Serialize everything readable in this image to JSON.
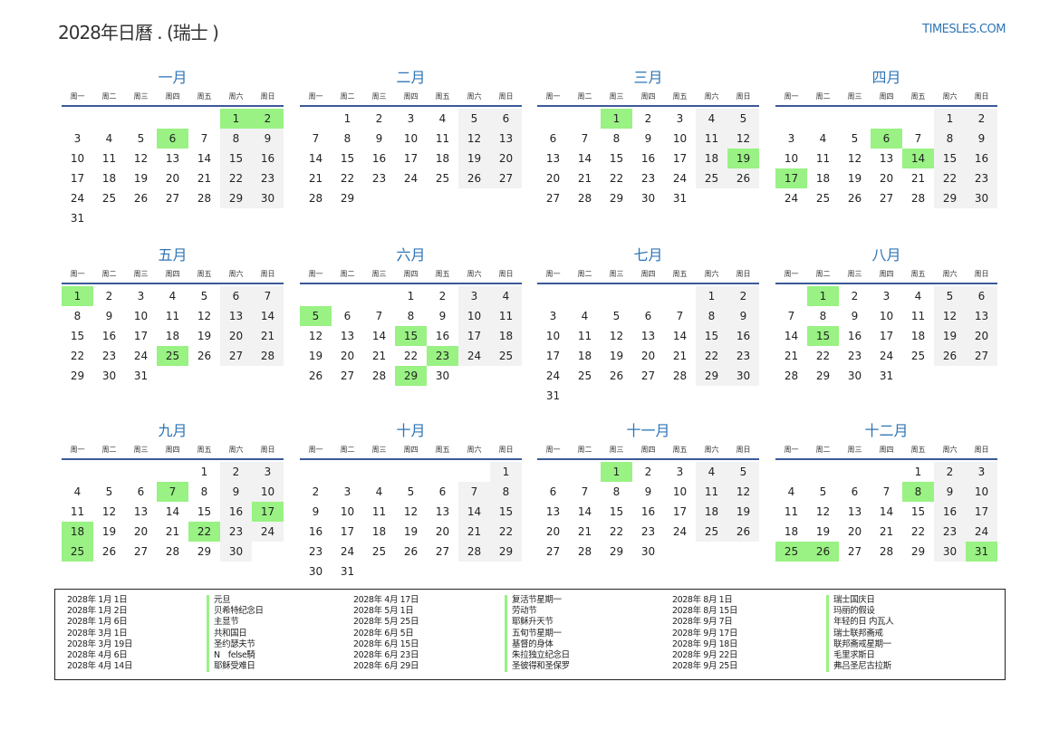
{
  "header": {
    "title": "2028年日曆 . (瑞士 )",
    "brand": "TIMESLES.COM"
  },
  "weekdays": [
    "周一",
    "周二",
    "周三",
    "周四",
    "周五",
    "周六",
    "周日"
  ],
  "colors": {
    "holiday": "#99f283",
    "weekend": "#f2f2f2",
    "accent": "#2e75b6"
  },
  "months": [
    {
      "name": "一月",
      "start_weekday": 6,
      "days": 31,
      "holidays": [
        1,
        2,
        6
      ]
    },
    {
      "name": "二月",
      "start_weekday": 2,
      "days": 29,
      "holidays": []
    },
    {
      "name": "三月",
      "start_weekday": 3,
      "days": 31,
      "holidays": [
        1,
        19
      ]
    },
    {
      "name": "四月",
      "start_weekday": 6,
      "days": 30,
      "holidays": [
        6,
        14,
        17
      ]
    },
    {
      "name": "五月",
      "start_weekday": 1,
      "days": 31,
      "holidays": [
        1,
        25
      ]
    },
    {
      "name": "六月",
      "start_weekday": 4,
      "days": 30,
      "holidays": [
        5,
        15,
        23,
        29
      ]
    },
    {
      "name": "七月",
      "start_weekday": 6,
      "days": 31,
      "holidays": []
    },
    {
      "name": "八月",
      "start_weekday": 2,
      "days": 31,
      "holidays": [
        1,
        15
      ]
    },
    {
      "name": "九月",
      "start_weekday": 5,
      "days": 30,
      "holidays": [
        7,
        17,
        18,
        22,
        25
      ]
    },
    {
      "name": "十月",
      "start_weekday": 7,
      "days": 31,
      "holidays": []
    },
    {
      "name": "十一月",
      "start_weekday": 3,
      "days": 30,
      "holidays": [
        1
      ]
    },
    {
      "name": "十二月",
      "start_weekday": 5,
      "days": 31,
      "holidays": [
        8,
        25,
        26,
        31
      ]
    }
  ],
  "holiday_list": [
    {
      "date": "2028年 1月 1日",
      "name": "元旦"
    },
    {
      "date": "2028年 1月 2日",
      "name": "贝希特纪念日"
    },
    {
      "date": "2028年 1月 6日",
      "name": "主显节"
    },
    {
      "date": "2028年 3月 1日",
      "name": "共和国日"
    },
    {
      "date": "2028年 3月 19日",
      "name": "圣约瑟夫节"
    },
    {
      "date": "2028年 4月 6日",
      "name": "N　felse騎"
    },
    {
      "date": "2028年 4月 14日",
      "name": "耶稣受难日"
    },
    {
      "date": "2028年 4月 17日",
      "name": "复活节星期一"
    },
    {
      "date": "2028年 5月 1日",
      "name": "劳动节"
    },
    {
      "date": "2028年 5月 25日",
      "name": "耶稣升天节"
    },
    {
      "date": "2028年 6月 5日",
      "name": "五旬节星期一"
    },
    {
      "date": "2028年 6月 15日",
      "name": "基督的身体"
    },
    {
      "date": "2028年 6月 23日",
      "name": "朱拉独立纪念日"
    },
    {
      "date": "2028年 6月 29日",
      "name": "圣彼得和圣保罗"
    },
    {
      "date": "2028年 8月 1日",
      "name": "瑞士国庆日"
    },
    {
      "date": "2028年 8月 15日",
      "name": "玛丽的假设"
    },
    {
      "date": "2028年 9月 7日",
      "name": "年轻的日 内瓦人"
    },
    {
      "date": "2028年 9月 17日",
      "name": "瑞士联邦斋戒"
    },
    {
      "date": "2028年 9月 18日",
      "name": "联邦斋戒星期一"
    },
    {
      "date": "2028年 9月 22日",
      "name": "毛里求斯日"
    },
    {
      "date": "2028年 9月 25日",
      "name": "弗吕圣尼古拉斯"
    }
  ]
}
